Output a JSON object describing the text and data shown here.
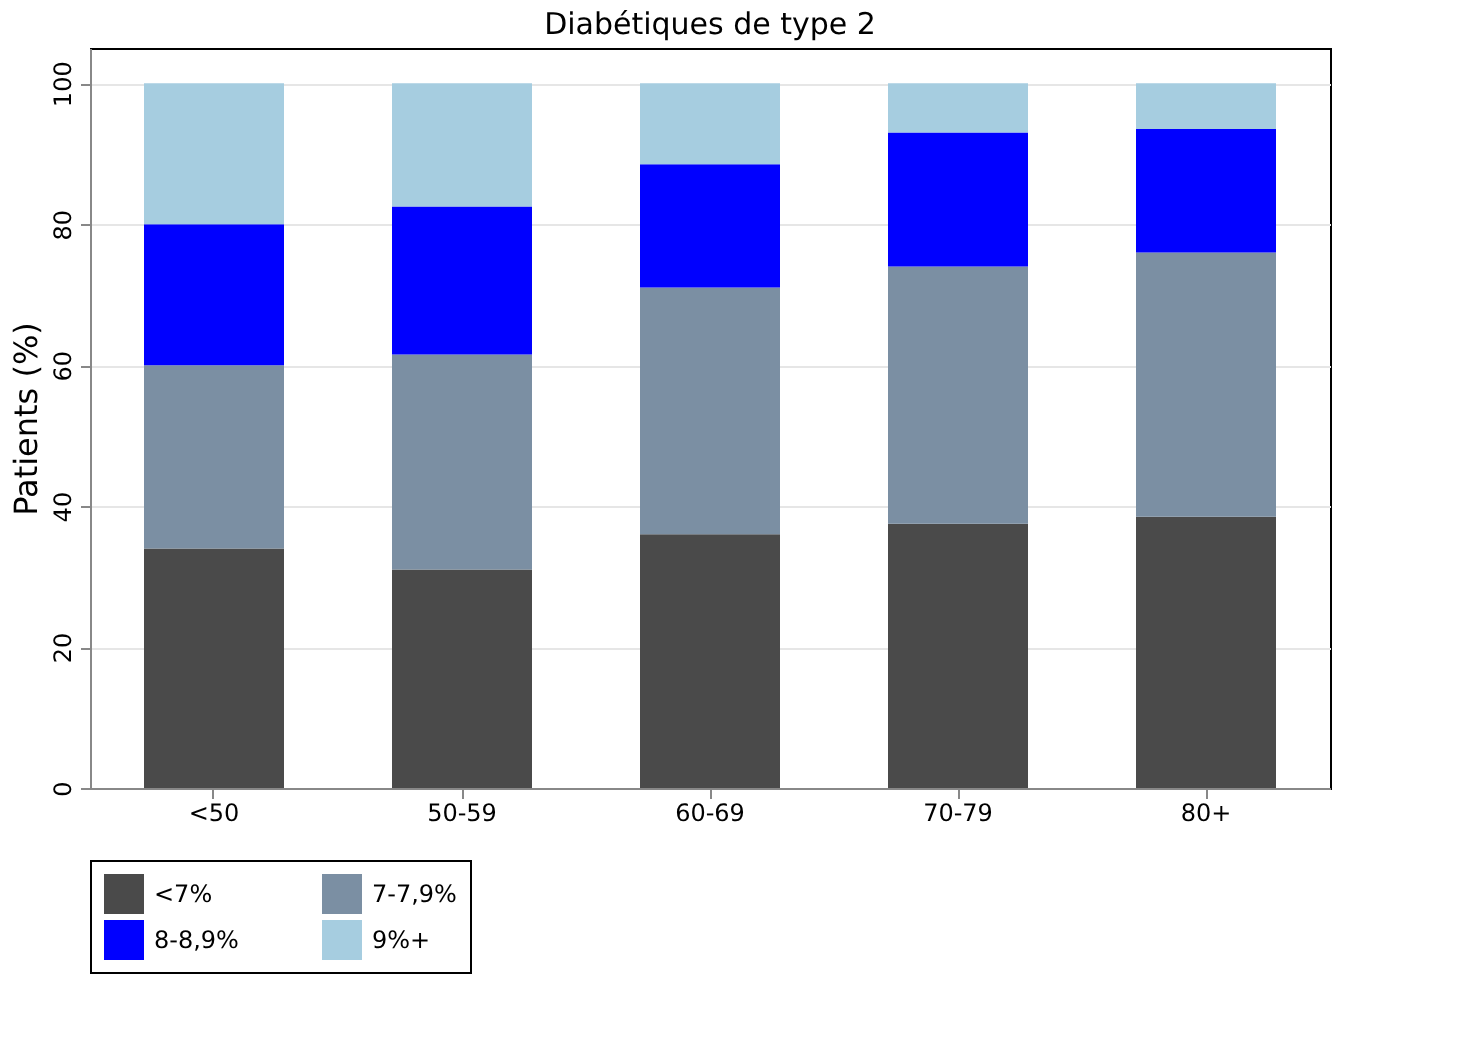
{
  "chart_data": {
    "type": "bar",
    "title": "Diabétiques de type 2",
    "ylabel": "Patients (%)",
    "stacked": true,
    "categories": [
      "<50",
      "50-59",
      "60-69",
      "70-79",
      "80+"
    ],
    "series": [
      {
        "name": "<7%",
        "color": "#4a4a4a",
        "values": [
          34,
          31,
          36,
          37.5,
          38.5
        ]
      },
      {
        "name": "7-7,9%",
        "color": "#7b8fa3",
        "values": [
          26,
          30.5,
          35,
          36.5,
          37.5
        ]
      },
      {
        "name": "8-8,9%",
        "color": "#0000ff",
        "values": [
          20,
          21,
          17.5,
          19,
          17.5
        ]
      },
      {
        "name": "9%+",
        "color": "#a6cde0",
        "values": [
          20,
          17.5,
          11.5,
          7,
          6.5
        ]
      }
    ],
    "ylim": [
      0,
      105
    ],
    "yticks": [
      0,
      20,
      40,
      60,
      80,
      100
    ],
    "grid": "y",
    "legend": "bottom"
  }
}
